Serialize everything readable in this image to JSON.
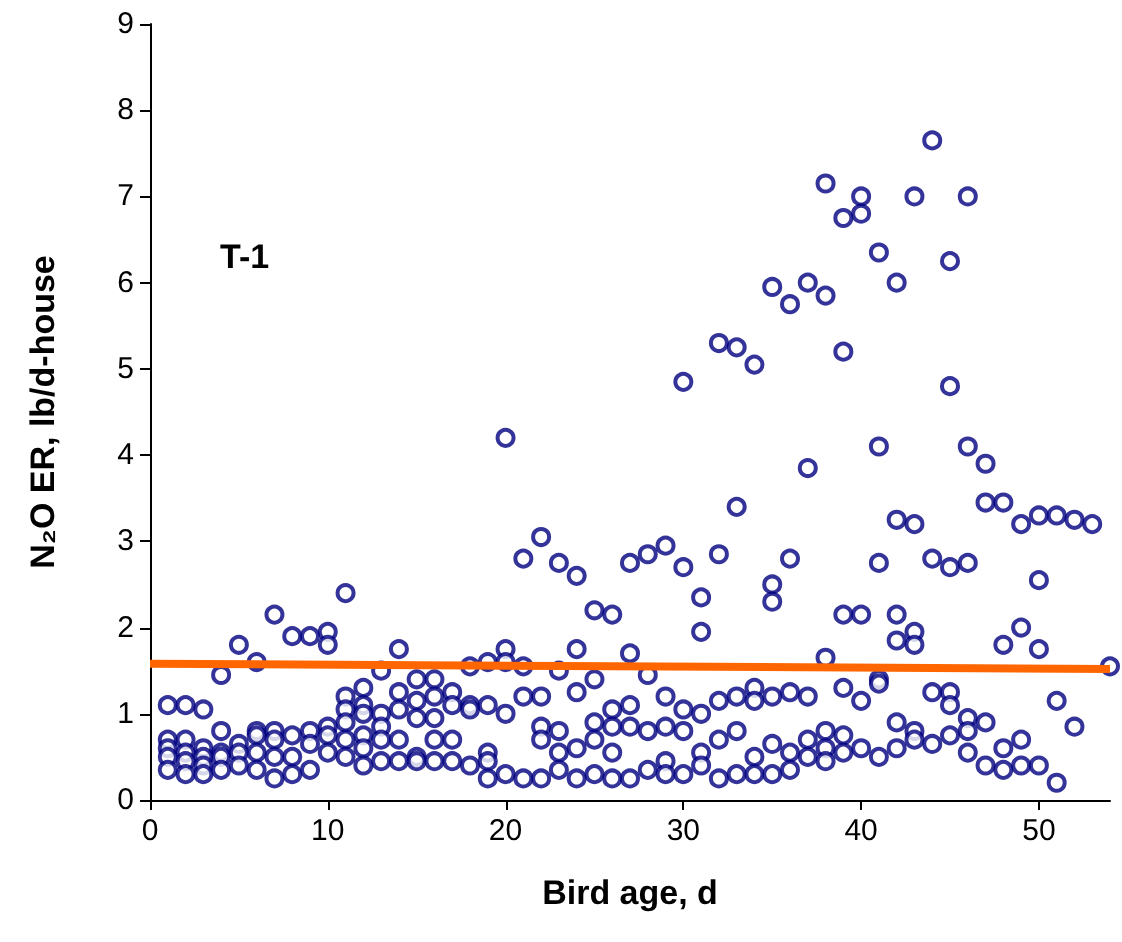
{
  "chart_data": {
    "type": "scatter",
    "xlabel": "Bird age, d",
    "ylabel": "N₂O ER, lb/d-house",
    "annotations": [
      "T-1"
    ],
    "xlim": [
      0,
      54
    ],
    "xticks": [
      0,
      10,
      20,
      30,
      40,
      50
    ],
    "ylim": [
      0,
      9
    ],
    "yticks": [
      0,
      1,
      2,
      3,
      4,
      5,
      6,
      7,
      8,
      9
    ],
    "grid": false,
    "marker": "circle",
    "series": [
      {
        "color": "#000080",
        "x": [
          1,
          1,
          1,
          1,
          1,
          2,
          2,
          2,
          2,
          2,
          3,
          3,
          3,
          3,
          3,
          4,
          4,
          4,
          4,
          4,
          5,
          5,
          5,
          5,
          6,
          6,
          6,
          6,
          6,
          7,
          7,
          7,
          7,
          7,
          8,
          8,
          8,
          8,
          9,
          9,
          9,
          9,
          10,
          10,
          10,
          10,
          10,
          11,
          11,
          11,
          11,
          11,
          11,
          12,
          12,
          12,
          12,
          12,
          12,
          13,
          13,
          13,
          13,
          13,
          14,
          14,
          14,
          14,
          14,
          15,
          15,
          15,
          15,
          15,
          16,
          16,
          16,
          16,
          16,
          17,
          17,
          17,
          17,
          18,
          18,
          18,
          18,
          19,
          19,
          19,
          19,
          19,
          20,
          20,
          20,
          20,
          20,
          21,
          21,
          21,
          21,
          22,
          22,
          22,
          22,
          22,
          23,
          23,
          23,
          23,
          23,
          24,
          24,
          24,
          24,
          24,
          25,
          25,
          25,
          25,
          25,
          26,
          26,
          26,
          26,
          26,
          27,
          27,
          27,
          27,
          27,
          28,
          28,
          28,
          28,
          29,
          29,
          29,
          29,
          29,
          30,
          30,
          30,
          30,
          30,
          31,
          31,
          31,
          31,
          31,
          32,
          32,
          32,
          32,
          32,
          33,
          33,
          33,
          33,
          33,
          34,
          34,
          34,
          34,
          34,
          35,
          35,
          35,
          35,
          35,
          35,
          36,
          36,
          36,
          36,
          36,
          37,
          37,
          37,
          37,
          37,
          38,
          38,
          38,
          38,
          38,
          38,
          39,
          39,
          39,
          39,
          39,
          39,
          40,
          40,
          40,
          40,
          40,
          41,
          41,
          41,
          41,
          41,
          41,
          42,
          42,
          42,
          42,
          42,
          42,
          43,
          43,
          43,
          43,
          43,
          43,
          44,
          44,
          44,
          44,
          45,
          45,
          45,
          45,
          45,
          45,
          46,
          46,
          46,
          46,
          46,
          46,
          47,
          47,
          47,
          47,
          48,
          48,
          48,
          48,
          49,
          49,
          49,
          49,
          50,
          50,
          50,
          50,
          51,
          51,
          51,
          52,
          52,
          53,
          54
        ],
        "values": [
          1.1,
          0.7,
          0.6,
          0.5,
          0.35,
          1.1,
          0.7,
          0.55,
          0.45,
          0.3,
          1.05,
          0.6,
          0.5,
          0.4,
          0.3,
          1.45,
          0.8,
          0.55,
          0.5,
          0.35,
          1.8,
          0.65,
          0.55,
          0.4,
          1.6,
          0.8,
          0.75,
          0.55,
          0.35,
          2.15,
          0.8,
          0.7,
          0.5,
          0.25,
          1.9,
          0.75,
          0.5,
          0.3,
          1.9,
          0.8,
          0.65,
          0.35,
          1.95,
          1.8,
          0.85,
          0.75,
          0.55,
          2.4,
          1.2,
          1.05,
          0.9,
          0.7,
          0.5,
          1.3,
          1.1,
          1.0,
          0.75,
          0.6,
          0.4,
          1.5,
          1.0,
          0.85,
          0.7,
          0.45,
          1.75,
          1.25,
          1.05,
          0.7,
          0.45,
          1.4,
          1.15,
          0.95,
          0.5,
          0.45,
          1.4,
          1.2,
          0.95,
          0.7,
          0.45,
          1.25,
          1.1,
          0.7,
          0.45,
          1.55,
          1.1,
          1.05,
          0.4,
          1.6,
          1.1,
          0.55,
          0.45,
          0.25,
          4.2,
          1.75,
          1.6,
          1.0,
          0.3,
          2.8,
          1.55,
          1.2,
          0.25,
          3.05,
          1.2,
          0.85,
          0.7,
          0.25,
          2.75,
          1.5,
          0.8,
          0.55,
          0.35,
          2.6,
          1.75,
          1.25,
          0.6,
          0.25,
          2.2,
          1.4,
          0.9,
          0.7,
          0.3,
          2.15,
          1.05,
          0.85,
          0.55,
          0.25,
          2.75,
          1.7,
          1.1,
          0.85,
          0.25,
          2.85,
          1.45,
          0.8,
          0.35,
          2.95,
          1.2,
          0.85,
          0.45,
          0.3,
          4.85,
          2.7,
          1.05,
          0.8,
          0.3,
          2.35,
          1.95,
          1.0,
          0.55,
          0.4,
          5.3,
          2.85,
          1.15,
          0.7,
          0.25,
          5.25,
          3.4,
          1.2,
          0.8,
          0.3,
          5.05,
          1.3,
          1.15,
          0.5,
          0.3,
          5.95,
          2.5,
          2.3,
          1.2,
          0.65,
          0.3,
          5.75,
          2.8,
          1.25,
          0.55,
          0.35,
          6.0,
          3.85,
          1.2,
          0.7,
          0.5,
          7.15,
          5.85,
          1.65,
          0.8,
          0.6,
          0.45,
          6.75,
          5.2,
          2.15,
          1.3,
          0.75,
          0.55,
          7.0,
          6.8,
          2.15,
          1.15,
          0.6,
          6.35,
          4.1,
          2.75,
          1.4,
          1.35,
          0.5,
          6.0,
          3.25,
          2.15,
          1.85,
          0.9,
          0.6,
          7.0,
          3.2,
          1.95,
          1.8,
          0.8,
          0.7,
          7.65,
          2.8,
          1.25,
          0.65,
          6.25,
          4.8,
          2.7,
          1.25,
          1.1,
          0.75,
          7.0,
          4.1,
          2.75,
          0.95,
          0.8,
          0.55,
          3.9,
          3.45,
          0.9,
          0.4,
          3.45,
          1.8,
          0.6,
          0.35,
          3.2,
          2.0,
          0.7,
          0.4,
          3.3,
          2.55,
          1.75,
          0.4,
          3.3,
          1.15,
          0.2,
          3.25,
          0.85,
          3.2,
          1.55
        ]
      },
      {
        "type": "line",
        "marker": "none",
        "color": "#ff6600",
        "x": [
          0,
          54
        ],
        "values": [
          1.58,
          1.52
        ]
      }
    ]
  }
}
